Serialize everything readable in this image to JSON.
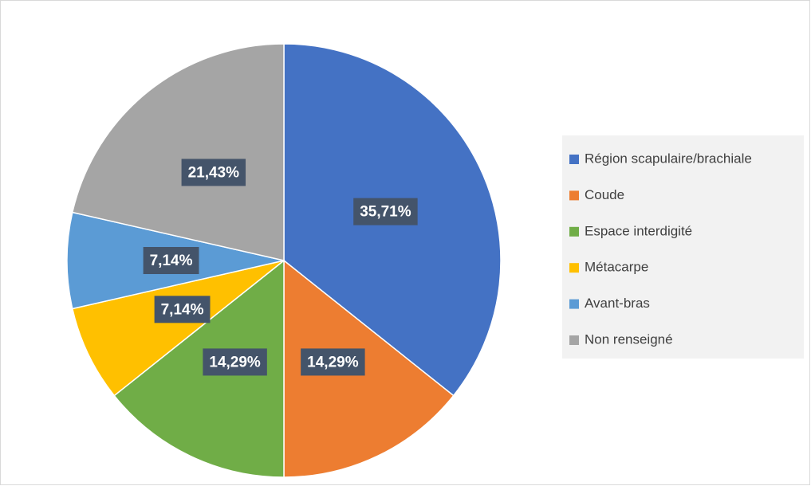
{
  "chart_data": {
    "type": "pie",
    "categories": [
      "Région scapulaire/brachiale",
      "Coude",
      "Espace interdigité",
      "Métacarpe",
      "Avant-bras",
      "Non renseigné"
    ],
    "values": [
      35.71,
      14.29,
      14.29,
      7.14,
      7.14,
      21.43
    ],
    "value_labels": [
      "35,71%",
      "14,29%",
      "14,29%",
      "7,14%",
      "7,14%",
      "21,43%"
    ],
    "colors": [
      "#4472c4",
      "#ed7d31",
      "#70ad47",
      "#ffc000",
      "#5b9bd5",
      "#a5a5a5"
    ],
    "legend": "right"
  }
}
